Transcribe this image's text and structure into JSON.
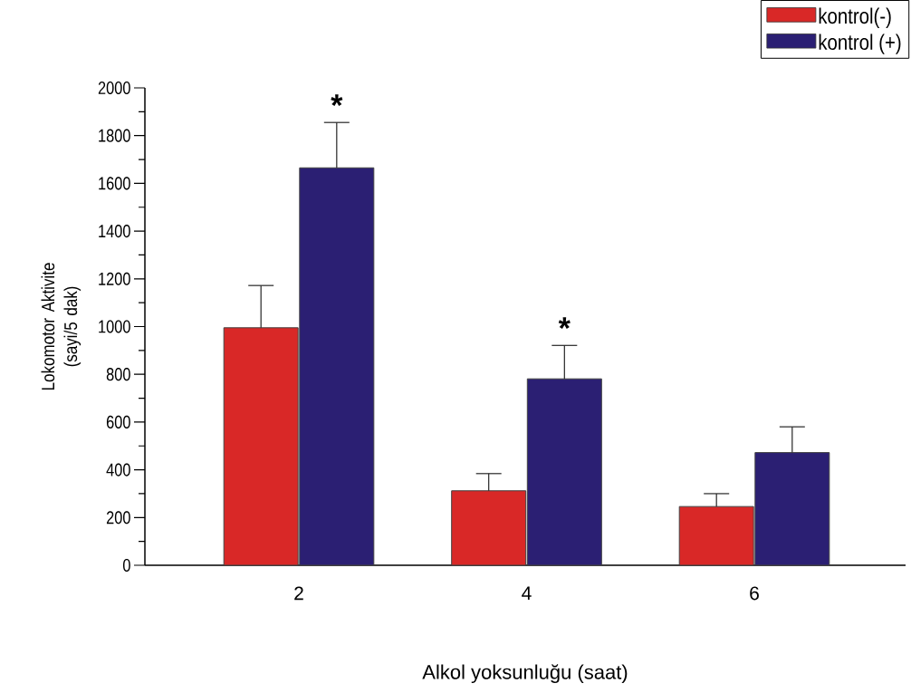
{
  "chart_data": {
    "type": "bar",
    "xlabel": "Alkol yoksunluğu (saat)",
    "ylabel": "Lokomotor Aktivite (sayi/5 dak)",
    "categories": [
      "2",
      "4",
      "6"
    ],
    "series": [
      {
        "name": "kontrol(-)",
        "color": "#d92827",
        "values": [
          995,
          312,
          246
        ],
        "errors": [
          [
            995,
            1172
          ],
          [
            312,
            384
          ],
          [
            246,
            300
          ]
        ]
      },
      {
        "name": "kontrol (+)",
        "color": "#2b1f73",
        "values": [
          1665,
          781,
          472
        ],
        "errors": [
          [
            1665,
            1855
          ],
          [
            781,
            921
          ],
          [
            472,
            580
          ]
        ]
      }
    ],
    "ylim": [
      0,
      2000
    ],
    "yticks": [
      0,
      200,
      400,
      600,
      800,
      1000,
      1200,
      1400,
      1600,
      1800,
      2000
    ],
    "annotations": [
      {
        "text": "*",
        "x": "2",
        "y": 1665
      },
      {
        "text": "*",
        "x": "4",
        "y": 781
      }
    ],
    "legend": "top right",
    "grid": false
  }
}
